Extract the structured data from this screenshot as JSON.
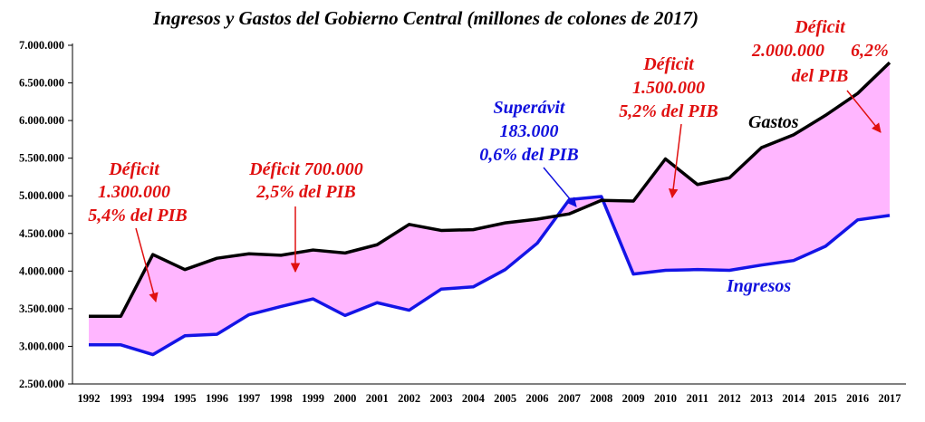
{
  "chart_data": {
    "type": "area",
    "title": "Ingresos y Gastos del Gobierno Central (millones de colones de 2017)",
    "xlabel": "",
    "ylabel": "",
    "ylim": [
      2500000,
      7000000
    ],
    "yticks": [
      2500000,
      3000000,
      3500000,
      4000000,
      4500000,
      5000000,
      5500000,
      6000000,
      6500000,
      7000000
    ],
    "ytick_labels": [
      "2.500.000",
      "3.000.000",
      "3.500.000",
      "4.000.000",
      "4.500.000",
      "5.000.000",
      "5.500.000",
      "6.000.000",
      "6.500.000",
      "7.000.000"
    ],
    "x": [
      "1992",
      "1993",
      "1994",
      "1995",
      "1996",
      "1997",
      "1998",
      "1999",
      "2000",
      "2001",
      "2002",
      "2003",
      "2004",
      "2005",
      "2006",
      "2007",
      "2008",
      "2009",
      "2010",
      "2011",
      "2012",
      "2013",
      "2014",
      "2015",
      "2016",
      "2017"
    ],
    "series": [
      {
        "name": "Gastos",
        "color": "#000000",
        "values": [
          3400000,
          3400000,
          4220000,
          4020000,
          4170000,
          4230000,
          4210000,
          4280000,
          4240000,
          4350000,
          4620000,
          4540000,
          4550000,
          4640000,
          4690000,
          4760000,
          4940000,
          4930000,
          5490000,
          5150000,
          5240000,
          5640000,
          5810000,
          6070000,
          6360000,
          6770000
        ]
      },
      {
        "name": "Ingresos",
        "color": "#1414e6",
        "values": [
          3020000,
          3020000,
          2890000,
          3140000,
          3160000,
          3420000,
          3530000,
          3630000,
          3410000,
          3580000,
          3480000,
          3760000,
          3790000,
          4020000,
          4370000,
          4950000,
          4990000,
          3960000,
          4010000,
          4020000,
          4010000,
          4080000,
          4140000,
          4330000,
          4680000,
          4740000
        ]
      }
    ],
    "fill_color": "#ffb6ff",
    "grid": false,
    "annotations": [
      {
        "lines": [
          "Déficit",
          "1.300.000",
          "5,4% del PIB"
        ],
        "color": "#e01010",
        "year": "1994"
      },
      {
        "lines": [
          "Déficit 700.000",
          "2,5% del PIB"
        ],
        "color": "#e01010",
        "year": "1998"
      },
      {
        "lines": [
          "Superávit",
          "183.000",
          "0,6% del PIB"
        ],
        "color": "#1010dd",
        "year": "2007"
      },
      {
        "lines": [
          "Déficit",
          "1.500.000",
          "5,2% del PIB"
        ],
        "color": "#e01010",
        "year": "2010"
      },
      {
        "lines": [
          "Déficit",
          "2.000.000",
          "del PIB"
        ],
        "color": "#e01010",
        "year": "2017"
      },
      {
        "lines": [
          "6,2%"
        ],
        "color": "#e01010",
        "year": "2017"
      },
      {
        "lines": [
          "Gastos"
        ],
        "color": "#000000"
      },
      {
        "lines": [
          "Ingresos"
        ],
        "color": "#1010dd"
      }
    ]
  }
}
